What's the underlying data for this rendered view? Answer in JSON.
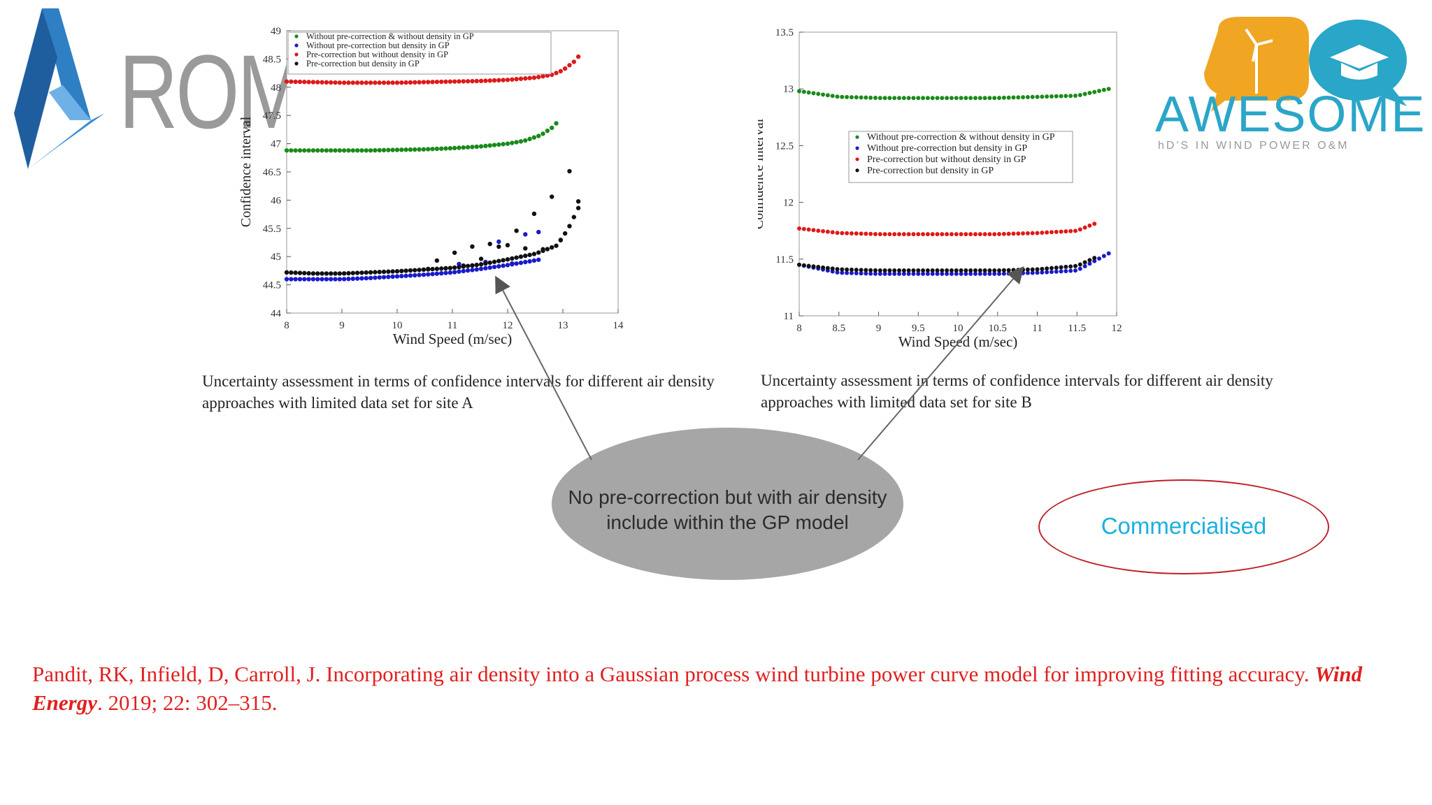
{
  "logos": {
    "left_text": "ROM",
    "right_text": "AWESOME",
    "right_subtitle": "hD'S IN WIND POWER O&M",
    "colors": {
      "arom_blue": "#2f7fc4",
      "awesome_blue": "#2aa6c8",
      "awesome_orange": "#f0a623",
      "gray": "#9a9a9a"
    }
  },
  "captions": {
    "site_a": "Uncertainty assessment in terms of confidence intervals for different air density approaches with limited data set for site A",
    "site_b": "Uncertainty assessment in terms of confidence intervals for different air density approaches with limited data set for site B"
  },
  "callout": {
    "text": "No pre-correction but with air density include within the GP model",
    "color": "#a6a6a7"
  },
  "badge": {
    "text": "Commercialised",
    "border_color": "#c0202a",
    "text_color": "#1ab0e0"
  },
  "reference": {
    "authors_title": "Pandit, RK, Infield, D, Carroll, J. Incorporating air density into a Gaussian process wind turbine power curve model for improving fitting accuracy. ",
    "journal": "Wind Energy",
    "details": ". 2019; 22: 302–315."
  },
  "chart_data": [
    {
      "type": "scatter",
      "title": "",
      "xlabel": "Wind Speed (m/sec)",
      "ylabel": "Confidence interval",
      "xlim": [
        8,
        14
      ],
      "ylim": [
        44,
        49
      ],
      "xticks": [
        "8",
        "9",
        "10",
        "11",
        "12",
        "13",
        "14"
      ],
      "yticks": [
        "44",
        "44.5",
        "45",
        "45.5",
        "46",
        "46.5",
        "47",
        "47.5",
        "48",
        "48.5",
        "49"
      ],
      "legend_position": "top",
      "series": [
        {
          "name": "Without pre-correction & without density in GP",
          "color": "#1a8a1a",
          "x": [
            8.0,
            8.5,
            9.0,
            9.5,
            10.0,
            10.5,
            11.0,
            11.5,
            12.0,
            12.3,
            12.6,
            12.8,
            12.9
          ],
          "y": [
            46.88,
            46.88,
            46.88,
            46.88,
            46.89,
            46.9,
            46.92,
            46.95,
            47.0,
            47.05,
            47.15,
            47.28,
            47.38
          ]
        },
        {
          "name": "Without pre-correction but density in GP",
          "color": "#1a1acc",
          "x": [
            8.0,
            8.5,
            9.0,
            9.5,
            10.0,
            10.5,
            11.0,
            11.5,
            12.0,
            12.3,
            12.6
          ],
          "y": [
            44.6,
            44.6,
            44.6,
            44.62,
            44.65,
            44.68,
            44.72,
            44.78,
            44.85,
            44.9,
            44.95
          ]
        },
        {
          "name": "Pre-correction but without density in GP",
          "color": "#dd1a1a",
          "x": [
            8.0,
            8.5,
            9.0,
            9.5,
            10.0,
            10.5,
            11.0,
            11.5,
            12.0,
            12.5,
            12.8,
            13.0,
            13.2,
            13.35
          ],
          "y": [
            48.1,
            48.09,
            48.08,
            48.08,
            48.08,
            48.09,
            48.1,
            48.11,
            48.13,
            48.17,
            48.22,
            48.3,
            48.45,
            48.62
          ]
        },
        {
          "name": "Pre-correction but density in GP",
          "color": "#111111",
          "x": [
            8.0,
            8.5,
            9.0,
            9.5,
            10.0,
            10.5,
            11.0,
            11.5,
            12.0,
            12.5,
            12.9,
            13.1,
            13.3,
            13.35
          ],
          "y": [
            44.72,
            44.7,
            44.7,
            44.72,
            44.74,
            44.77,
            44.8,
            44.86,
            44.95,
            45.05,
            45.2,
            45.5,
            45.9,
            46.55
          ]
        }
      ]
    },
    {
      "type": "scatter",
      "title": "",
      "xlabel": "Wind Speed (m/sec)",
      "ylabel": "Confidence interval",
      "xlim": [
        8,
        12
      ],
      "ylim": [
        11,
        13.5
      ],
      "xticks": [
        "8",
        "8.5",
        "9",
        "9.5",
        "10",
        "10.5",
        "11",
        "11.5",
        "12"
      ],
      "yticks": [
        "11",
        "11.5",
        "12",
        "12.5",
        "13",
        "13.5"
      ],
      "legend_position": "center",
      "series": [
        {
          "name": "Without pre-correction & without density in GP",
          "color": "#1a8a1a",
          "x": [
            8.0,
            8.5,
            9.0,
            9.5,
            10.0,
            10.5,
            11.0,
            11.5,
            11.9
          ],
          "y": [
            12.98,
            12.93,
            12.92,
            12.92,
            12.92,
            12.92,
            12.93,
            12.94,
            13.0
          ]
        },
        {
          "name": "Without pre-correction but density in GP",
          "color": "#1a1acc",
          "x": [
            8.0,
            8.5,
            9.0,
            9.5,
            10.0,
            10.5,
            11.0,
            11.5,
            11.9
          ],
          "y": [
            11.45,
            11.38,
            11.37,
            11.37,
            11.37,
            11.37,
            11.38,
            11.4,
            11.55
          ]
        },
        {
          "name": "Pre-correction but without density in GP",
          "color": "#dd1a1a",
          "x": [
            8.0,
            8.5,
            9.0,
            9.5,
            10.0,
            10.5,
            11.0,
            11.5,
            11.75
          ],
          "y": [
            11.77,
            11.73,
            11.72,
            11.72,
            11.72,
            11.72,
            11.73,
            11.75,
            11.82
          ]
        },
        {
          "name": "Pre-correction but density in GP",
          "color": "#111111",
          "x": [
            8.0,
            8.5,
            9.0,
            9.5,
            10.0,
            10.5,
            11.0,
            11.5,
            11.75
          ],
          "y": [
            11.45,
            11.41,
            11.4,
            11.4,
            11.4,
            11.4,
            11.41,
            11.44,
            11.52
          ]
        }
      ]
    }
  ]
}
